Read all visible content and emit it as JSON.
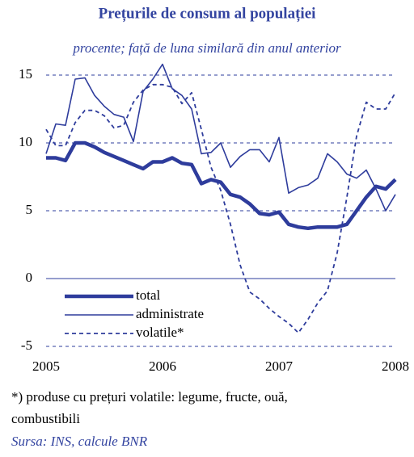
{
  "chart_data": {
    "type": "line",
    "title": "Prețurile de consum al populației",
    "subtitle": "procente; față de luna similară din anul anterior",
    "categories": [
      "2005",
      null,
      null,
      null,
      null,
      null,
      null,
      null,
      null,
      null,
      null,
      null,
      "2006",
      null,
      null,
      null,
      null,
      null,
      null,
      null,
      null,
      null,
      null,
      null,
      "2007",
      null,
      null,
      null,
      null,
      null,
      null,
      null,
      null,
      null,
      null,
      null,
      "2008"
    ],
    "series": [
      {
        "name": "total",
        "color": "#2e3c9c",
        "linewidth": 4.5,
        "linestyle": "solid",
        "values": [
          8.9,
          8.9,
          8.7,
          10.0,
          10.0,
          9.7,
          9.3,
          9.0,
          8.7,
          8.4,
          8.1,
          8.6,
          8.6,
          8.9,
          8.5,
          8.4,
          7.0,
          7.3,
          7.1,
          6.2,
          6.0,
          5.5,
          4.8,
          4.7,
          4.9,
          4.0,
          3.8,
          3.7,
          3.8,
          3.8,
          3.8,
          4.0,
          5.0,
          6.0,
          6.8,
          6.6,
          7.3
        ]
      },
      {
        "name": "administrate",
        "color": "#2e3c9c",
        "linewidth": 1.6,
        "linestyle": "solid",
        "values": [
          9.2,
          11.4,
          11.3,
          14.7,
          14.8,
          13.5,
          12.7,
          12.1,
          11.9,
          10.1,
          13.8,
          14.7,
          15.8,
          14.0,
          13.5,
          12.5,
          9.2,
          9.3,
          10.0,
          8.2,
          9.0,
          9.5,
          9.5,
          8.6,
          10.4,
          6.3,
          6.7,
          6.9,
          7.4,
          9.2,
          8.6,
          7.7,
          7.4,
          8.0,
          6.6,
          5.0,
          6.2
        ]
      },
      {
        "name": "volatile*",
        "color": "#2e3c9c",
        "linewidth": 1.8,
        "linestyle": "dashed",
        "values": [
          11.0,
          9.8,
          9.8,
          11.5,
          12.4,
          12.4,
          12.0,
          11.1,
          11.3,
          13.0,
          13.9,
          14.3,
          14.3,
          14.1,
          12.9,
          13.7,
          11.0,
          8.2,
          6.5,
          4.0,
          1.0,
          -1.0,
          -1.5,
          -2.2,
          -2.8,
          -3.3,
          -4.0,
          -3.0,
          -1.8,
          -0.9,
          1.9,
          6.0,
          10.5,
          13.0,
          12.5,
          12.5,
          13.7
        ]
      }
    ],
    "ylim": [
      -5,
      16
    ],
    "yticks": [
      -5,
      0,
      5,
      10,
      15
    ],
    "grid": true,
    "legend": "lower-left",
    "footnote": [
      "*) produse cu prețuri volatile: legume, fructe, ouă,",
      "combustibili"
    ],
    "source": "Sursa: INS, calcule BNR"
  }
}
